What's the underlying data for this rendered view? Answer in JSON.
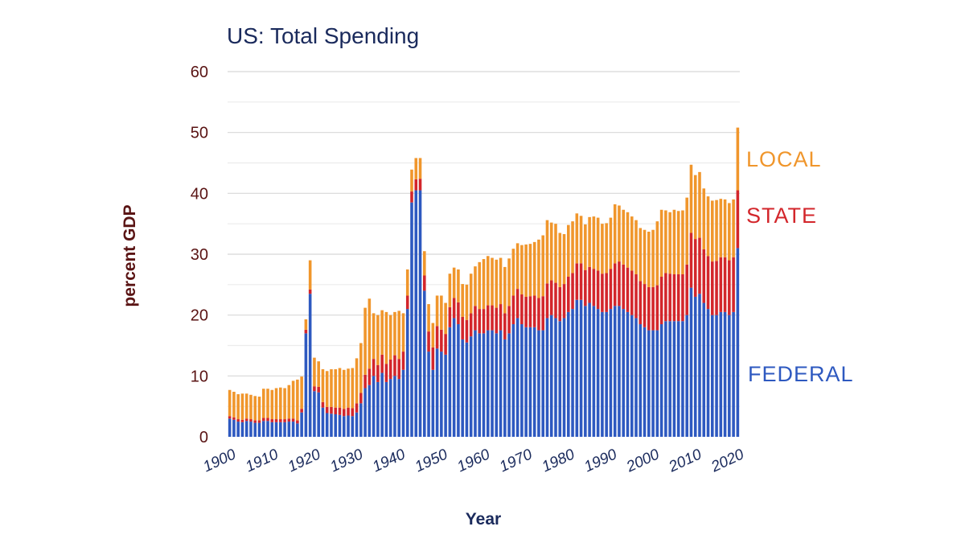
{
  "colors": {
    "federal": "#2e59c0",
    "state": "#d3262b",
    "local": "#f0962c",
    "title": "#1a2a5c",
    "axis_text": "#5a1414",
    "grid": "#d8d8d8",
    "grid_minor": "#ececec"
  },
  "chart_data": {
    "type": "bar",
    "stacked": true,
    "title": "US: Total Spending",
    "xlabel": "Year",
    "ylabel": "percent GDP",
    "ylim": [
      0,
      60
    ],
    "yticks": [
      "0",
      "10",
      "20",
      "30",
      "40",
      "50",
      "60"
    ],
    "xticks": [
      "1900",
      "1910",
      "1920",
      "1930",
      "1940",
      "1950",
      "1960",
      "1970",
      "1980",
      "1990",
      "2000",
      "2010",
      "2020"
    ],
    "grid": true,
    "legend": "inline-right",
    "x": [
      1900,
      1901,
      1902,
      1903,
      1904,
      1905,
      1906,
      1907,
      1908,
      1909,
      1910,
      1911,
      1912,
      1913,
      1914,
      1915,
      1916,
      1917,
      1918,
      1919,
      1920,
      1921,
      1922,
      1923,
      1924,
      1925,
      1926,
      1927,
      1928,
      1929,
      1930,
      1931,
      1932,
      1933,
      1934,
      1935,
      1936,
      1937,
      1938,
      1939,
      1940,
      1941,
      1942,
      1943,
      1944,
      1945,
      1946,
      1947,
      1948,
      1949,
      1950,
      1951,
      1952,
      1953,
      1954,
      1955,
      1956,
      1957,
      1958,
      1959,
      1960,
      1961,
      1962,
      1963,
      1964,
      1965,
      1966,
      1967,
      1968,
      1969,
      1970,
      1971,
      1972,
      1973,
      1974,
      1975,
      1976,
      1977,
      1978,
      1979,
      1980,
      1981,
      1982,
      1983,
      1984,
      1985,
      1986,
      1987,
      1988,
      1989,
      1990,
      1991,
      1992,
      1993,
      1994,
      1995,
      1996,
      1997,
      1998,
      1999,
      2000,
      2001,
      2002,
      2003,
      2004,
      2005,
      2006,
      2007,
      2008,
      2009,
      2010,
      2011,
      2012,
      2013,
      2014,
      2015,
      2016,
      2017,
      2018,
      2019,
      2020
    ],
    "series": [
      {
        "name": "FEDERAL",
        "values": [
          3.0,
          2.8,
          2.5,
          2.4,
          2.6,
          2.5,
          2.3,
          2.3,
          2.6,
          2.6,
          2.4,
          2.4,
          2.4,
          2.4,
          2.5,
          2.5,
          2.2,
          4.0,
          17.0,
          23.5,
          7.5,
          7.3,
          4.8,
          3.9,
          3.8,
          3.7,
          3.6,
          3.4,
          3.5,
          3.4,
          4.0,
          5.5,
          8.0,
          8.5,
          10.0,
          9.0,
          10.5,
          9.0,
          9.5,
          10.0,
          9.5,
          11.0,
          21.0,
          38.5,
          40.5,
          40.5,
          24.0,
          14.0,
          11.0,
          14.5,
          14.0,
          13.5,
          18.0,
          19.5,
          18.5,
          16.0,
          15.5,
          16.5,
          17.5,
          17.0,
          17.0,
          17.5,
          17.5,
          17.0,
          17.5,
          16.0,
          17.0,
          18.5,
          19.5,
          18.5,
          18.0,
          18.0,
          18.0,
          17.5,
          17.5,
          19.5,
          20.0,
          19.5,
          19.0,
          19.5,
          20.5,
          21.0,
          22.5,
          22.5,
          21.5,
          22.0,
          21.5,
          21.0,
          20.5,
          20.5,
          21.0,
          21.5,
          21.5,
          21.0,
          20.5,
          20.0,
          19.5,
          18.5,
          18.0,
          17.5,
          17.5,
          17.5,
          18.5,
          19.0,
          19.0,
          19.0,
          19.0,
          19.0,
          20.0,
          24.5,
          23.0,
          23.5,
          22.0,
          21.0,
          20.0,
          20.0,
          20.5,
          20.5,
          20.0,
          20.5,
          31.0
        ]
      },
      {
        "name": "STATE",
        "values": [
          0.4,
          0.4,
          0.4,
          0.4,
          0.4,
          0.4,
          0.4,
          0.4,
          0.5,
          0.5,
          0.5,
          0.5,
          0.5,
          0.5,
          0.5,
          0.5,
          0.5,
          0.6,
          0.6,
          0.7,
          0.8,
          0.9,
          0.9,
          1.0,
          1.1,
          1.1,
          1.2,
          1.2,
          1.3,
          1.3,
          1.5,
          1.7,
          2.2,
          2.7,
          2.8,
          2.8,
          3.0,
          3.0,
          3.2,
          3.4,
          3.3,
          3.0,
          2.2,
          1.8,
          1.8,
          1.9,
          2.5,
          3.3,
          3.7,
          3.7,
          3.6,
          3.4,
          3.3,
          3.3,
          3.6,
          3.7,
          3.7,
          3.8,
          4.0,
          4.0,
          4.0,
          4.1,
          4.1,
          4.2,
          4.3,
          4.3,
          4.5,
          4.7,
          4.8,
          4.9,
          5.0,
          5.1,
          5.2,
          5.3,
          5.6,
          5.7,
          5.7,
          5.8,
          5.6,
          5.6,
          5.8,
          5.9,
          6.0,
          6.0,
          5.9,
          5.9,
          6.1,
          6.3,
          6.3,
          6.4,
          6.6,
          7.0,
          7.3,
          7.3,
          7.3,
          7.3,
          7.2,
          7.1,
          7.1,
          7.1,
          7.1,
          7.4,
          7.8,
          7.9,
          7.8,
          7.7,
          7.7,
          7.7,
          8.3,
          9.0,
          9.5,
          9.2,
          8.8,
          8.7,
          8.8,
          8.9,
          9.0,
          9.0,
          9.0,
          9.0,
          9.5
        ]
      },
      {
        "name": "LOCAL",
        "values": [
          4.3,
          4.2,
          4.1,
          4.3,
          4.1,
          4.0,
          4.0,
          3.9,
          4.8,
          4.8,
          4.8,
          5.1,
          5.2,
          5.1,
          5.5,
          6.2,
          6.7,
          5.3,
          1.7,
          4.8,
          4.7,
          4.2,
          5.4,
          5.9,
          6.2,
          6.3,
          6.5,
          6.4,
          6.4,
          6.6,
          7.4,
          8.2,
          11.0,
          11.5,
          7.5,
          8.2,
          7.3,
          8.5,
          7.3,
          7.1,
          7.9,
          6.3,
          4.3,
          3.6,
          3.5,
          3.4,
          4.0,
          4.5,
          4.0,
          5.0,
          5.6,
          5.1,
          5.5,
          5.0,
          5.4,
          5.4,
          5.8,
          6.5,
          6.5,
          7.7,
          8.2,
          8.1,
          7.8,
          7.9,
          7.6,
          7.6,
          7.8,
          7.7,
          7.5,
          8.1,
          8.6,
          8.6,
          8.8,
          9.6,
          10.0,
          10.4,
          9.5,
          9.7,
          8.9,
          8.2,
          8.5,
          8.5,
          8.2,
          7.8,
          7.5,
          8.2,
          8.6,
          8.7,
          8.2,
          8.2,
          8.4,
          9.7,
          9.2,
          9.0,
          9.1,
          8.9,
          8.9,
          8.7,
          8.9,
          9.1,
          9.4,
          10.5,
          11.0,
          10.3,
          10.1,
          10.6,
          10.4,
          10.5,
          11.0,
          11.2,
          10.5,
          10.8,
          10.0,
          9.8,
          10.0,
          10.0,
          9.6,
          9.5,
          9.4,
          9.5,
          10.3
        ]
      }
    ]
  }
}
